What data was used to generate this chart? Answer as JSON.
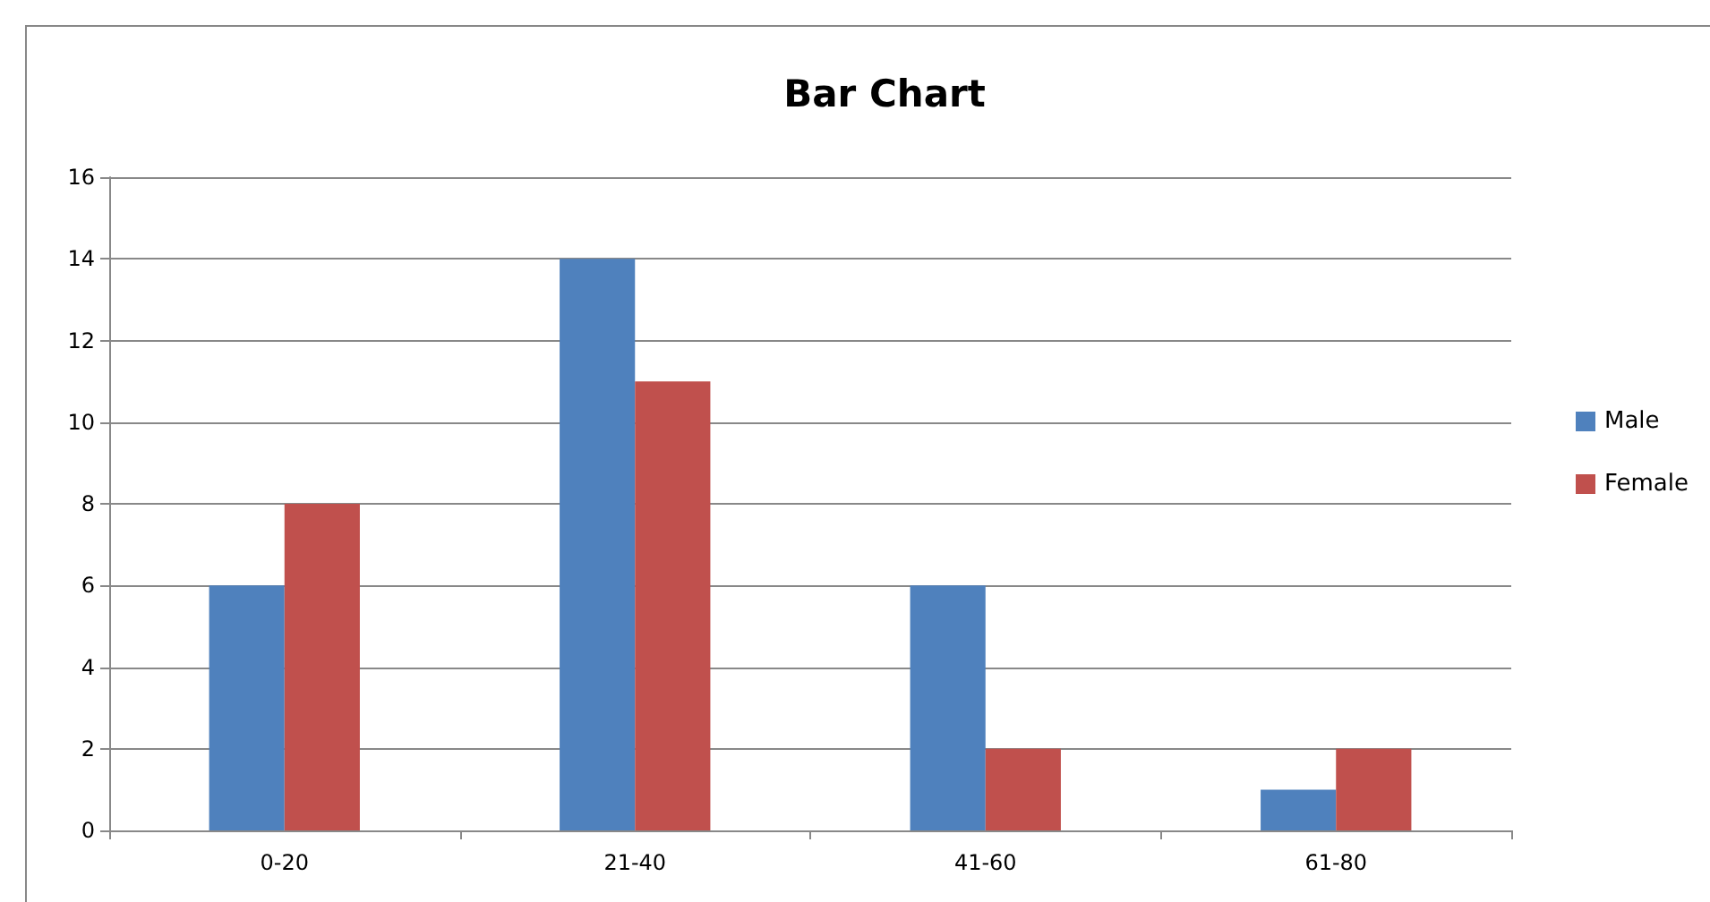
{
  "chart_data": {
    "type": "bar",
    "title": "Bar Chart",
    "categories": [
      "0-20",
      "21-40",
      "41-60",
      "61-80"
    ],
    "series": [
      {
        "name": "Male",
        "color": "#4f81bd",
        "values": [
          6,
          14,
          6,
          1
        ]
      },
      {
        "name": "Female",
        "color": "#c0504d",
        "values": [
          8,
          11,
          2,
          2
        ]
      }
    ],
    "ylim": [
      0,
      16
    ],
    "yticks": [
      0,
      2,
      4,
      6,
      8,
      10,
      12,
      14,
      16
    ],
    "grid": "y",
    "legend": "right"
  }
}
